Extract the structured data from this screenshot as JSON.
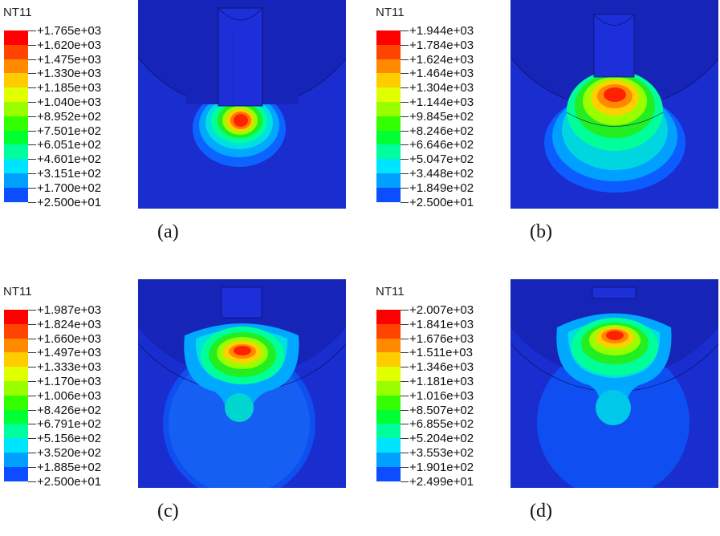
{
  "colors": {
    "background": "#1a2ecf",
    "scale": [
      "#0000ff",
      "#0b4dff",
      "#00a0ff",
      "#00e5ff",
      "#00ff9c",
      "#00ff33",
      "#33ff00",
      "#99ff00",
      "#e0ff00",
      "#ffcc00",
      "#ff8a00",
      "#ff4400",
      "#ff0000"
    ]
  },
  "panels": [
    {
      "caption": "(a)",
      "legend_title": "NT11",
      "levels": [
        "+1.765e+03",
        "+1.620e+03",
        "+1.475e+03",
        "+1.330e+03",
        "+1.185e+03",
        "+1.040e+03",
        "+8.952e+02",
        "+7.501e+02",
        "+6.051e+02",
        "+4.601e+02",
        "+3.151e+02",
        "+1.700e+02",
        "+2.500e+01"
      ]
    },
    {
      "caption": "(b)",
      "legend_title": "NT11",
      "levels": [
        "+1.944e+03",
        "+1.784e+03",
        "+1.624e+03",
        "+1.464e+03",
        "+1.304e+03",
        "+1.144e+03",
        "+9.845e+02",
        "+8.246e+02",
        "+6.646e+02",
        "+5.047e+02",
        "+3.448e+02",
        "+1.849e+02",
        "+2.500e+01"
      ]
    },
    {
      "caption": "(c)",
      "legend_title": "NT11",
      "levels": [
        "+1.987e+03",
        "+1.824e+03",
        "+1.660e+03",
        "+1.497e+03",
        "+1.333e+03",
        "+1.170e+03",
        "+1.006e+03",
        "+8.426e+02",
        "+6.791e+02",
        "+5.156e+02",
        "+3.520e+02",
        "+1.885e+02",
        "+2.500e+01"
      ]
    },
    {
      "caption": "(d)",
      "legend_title": "NT11",
      "levels": [
        "+2.007e+03",
        "+1.841e+03",
        "+1.676e+03",
        "+1.511e+03",
        "+1.346e+03",
        "+1.181e+03",
        "+1.016e+03",
        "+8.507e+02",
        "+6.855e+02",
        "+5.204e+02",
        "+3.553e+02",
        "+1.901e+02",
        "+2.499e+01"
      ]
    }
  ]
}
